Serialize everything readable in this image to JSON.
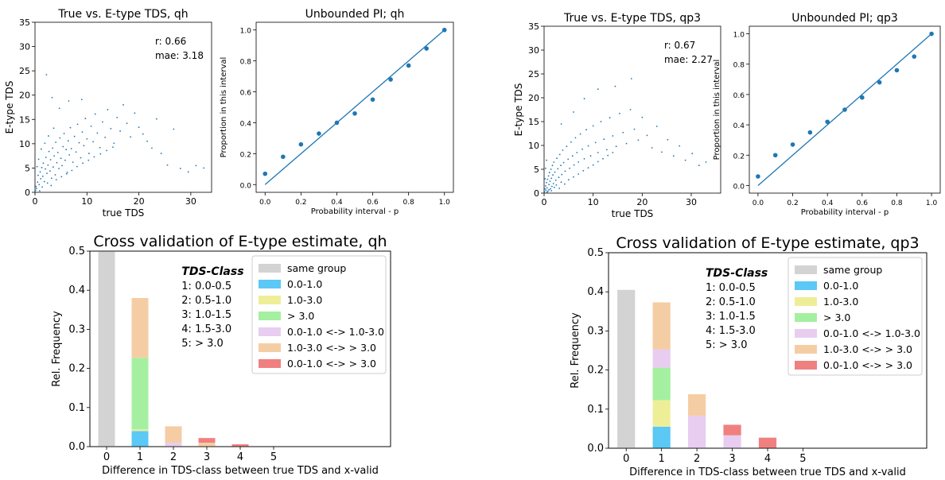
{
  "chart_data": [
    {
      "id": "scatter_qh",
      "type": "scatter",
      "title": "True vs. E-type TDS, qh",
      "xlabel": "true TDS",
      "ylabel": "E-type TDS",
      "xlim": [
        0,
        34
      ],
      "ylim": [
        0,
        35
      ],
      "xticks": [
        0,
        10,
        20,
        30
      ],
      "yticks": [
        0,
        5,
        10,
        15,
        20,
        25,
        30,
        35
      ],
      "annotations": [
        "r: 0.66",
        "mae: 3.18"
      ],
      "color": "#1f77b4",
      "points": [
        [
          0.1,
          0.4
        ],
        [
          0.2,
          1.2
        ],
        [
          0.3,
          0.8
        ],
        [
          0.5,
          2.1
        ],
        [
          0.6,
          3.5
        ],
        [
          0.8,
          1.6
        ],
        [
          1.0,
          4.2
        ],
        [
          1.1,
          2.8
        ],
        [
          1.3,
          5.1
        ],
        [
          1.5,
          3.3
        ],
        [
          1.6,
          6.0
        ],
        [
          1.8,
          2.2
        ],
        [
          2.0,
          4.8
        ],
        [
          2.1,
          7.2
        ],
        [
          2.3,
          3.9
        ],
        [
          2.5,
          5.6
        ],
        [
          2.7,
          8.4
        ],
        [
          2.9,
          4.4
        ],
        [
          3.0,
          6.7
        ],
        [
          3.2,
          2.9
        ],
        [
          3.4,
          9.1
        ],
        [
          3.5,
          5.2
        ],
        [
          3.7,
          7.5
        ],
        [
          3.9,
          3.6
        ],
        [
          4.0,
          10.3
        ],
        [
          4.2,
          6.1
        ],
        [
          4.4,
          8.2
        ],
        [
          4.6,
          4.9
        ],
        [
          4.8,
          11.2
        ],
        [
          5.0,
          7.0
        ],
        [
          5.2,
          5.5
        ],
        [
          5.4,
          9.4
        ],
        [
          5.6,
          12.1
        ],
        [
          5.8,
          6.6
        ],
        [
          6.0,
          8.8
        ],
        [
          6.2,
          4.1
        ],
        [
          6.4,
          10.6
        ],
        [
          6.6,
          7.7
        ],
        [
          6.8,
          13.3
        ],
        [
          7.0,
          9.0
        ],
        [
          7.3,
          6.2
        ],
        [
          7.6,
          11.5
        ],
        [
          7.9,
          8.3
        ],
        [
          8.2,
          14.0
        ],
        [
          8.5,
          10.2
        ],
        [
          8.8,
          7.1
        ],
        [
          9.1,
          12.4
        ],
        [
          9.4,
          9.6
        ],
        [
          9.7,
          15.2
        ],
        [
          10.0,
          11.0
        ],
        [
          10.4,
          8.0
        ],
        [
          10.8,
          13.6
        ],
        [
          11.2,
          10.4
        ],
        [
          11.6,
          16.1
        ],
        [
          12.0,
          12.2
        ],
        [
          12.5,
          9.2
        ],
        [
          13.0,
          14.5
        ],
        [
          13.5,
          11.3
        ],
        [
          14.0,
          17.0
        ],
        [
          14.6,
          13.1
        ],
        [
          15.2,
          10.1
        ],
        [
          15.8,
          15.4
        ],
        [
          16.4,
          12.6
        ],
        [
          17.0,
          18.0
        ],
        [
          17.7,
          14.2
        ],
        [
          18.4,
          11.4
        ],
        [
          19.2,
          16.3
        ],
        [
          20.0,
          13.4
        ],
        [
          20.8,
          12.0
        ],
        [
          21.6,
          10.5
        ],
        [
          22.5,
          9.1
        ],
        [
          23.4,
          15.1
        ],
        [
          24.3,
          8.0
        ],
        [
          25.5,
          5.6
        ],
        [
          26.7,
          13.0
        ],
        [
          28.0,
          4.9
        ],
        [
          29.5,
          4.2
        ],
        [
          31.0,
          5.5
        ],
        [
          32.5,
          5.0
        ],
        [
          2.2,
          24.2
        ],
        [
          3.3,
          19.5
        ],
        [
          4.7,
          17.3
        ],
        [
          6.5,
          18.8
        ],
        [
          9.0,
          19.1
        ],
        [
          0.4,
          5.3
        ],
        [
          0.7,
          6.8
        ],
        [
          1.2,
          8.9
        ],
        [
          1.9,
          10.1
        ],
        [
          2.6,
          11.6
        ],
        [
          3.6,
          13.2
        ],
        [
          0.9,
          0.3
        ],
        [
          1.4,
          1.1
        ],
        [
          2.4,
          1.9
        ],
        [
          3.1,
          1.4
        ],
        [
          4.1,
          2.6
        ],
        [
          5.1,
          3.2
        ],
        [
          6.1,
          3.8
        ],
        [
          7.1,
          4.5
        ],
        [
          8.1,
          5.3
        ],
        [
          9.2,
          6.0
        ],
        [
          10.3,
          6.6
        ],
        [
          11.4,
          7.3
        ],
        [
          12.6,
          7.9
        ],
        [
          13.8,
          8.6
        ],
        [
          15.0,
          9.3
        ]
      ]
    },
    {
      "id": "pi_qh",
      "type": "scatter",
      "title": "Unbounded PI; qh",
      "xlabel": "Probability interval - p",
      "ylabel": "Proportion in this interval",
      "xlim": [
        -0.05,
        1.05
      ],
      "ylim": [
        -0.05,
        1.05
      ],
      "xticks": [
        0.0,
        0.2,
        0.4,
        0.6,
        0.8,
        1.0
      ],
      "yticks": [
        0.0,
        0.2,
        0.4,
        0.6,
        0.8,
        1.0
      ],
      "line": [
        [
          0,
          0
        ],
        [
          1,
          1
        ]
      ],
      "x": [
        0.0,
        0.1,
        0.2,
        0.3,
        0.4,
        0.5,
        0.6,
        0.7,
        0.8,
        0.9,
        1.0
      ],
      "y": [
        0.07,
        0.18,
        0.26,
        0.33,
        0.4,
        0.46,
        0.55,
        0.68,
        0.77,
        0.88,
        1.0
      ]
    },
    {
      "id": "scatter_qp3",
      "type": "scatter",
      "title": "True vs. E-type TDS, qp3",
      "xlabel": "true TDS",
      "ylabel": "E-type TDS",
      "xlim": [
        0,
        36
      ],
      "ylim": [
        0,
        35
      ],
      "xticks": [
        0,
        10,
        20,
        30
      ],
      "yticks": [
        0,
        5,
        10,
        15,
        20,
        25,
        30,
        35
      ],
      "annotations": [
        "r: 0.67",
        "mae: 2.27"
      ],
      "color": "#1f77b4",
      "points": [
        [
          0.1,
          0.3
        ],
        [
          0.2,
          0.9
        ],
        [
          0.3,
          1.5
        ],
        [
          0.4,
          0.6
        ],
        [
          0.5,
          2.2
        ],
        [
          0.6,
          1.1
        ],
        [
          0.7,
          2.9
        ],
        [
          0.8,
          0.4
        ],
        [
          0.9,
          3.6
        ],
        [
          1.0,
          1.8
        ],
        [
          1.1,
          4.3
        ],
        [
          1.2,
          2.5
        ],
        [
          1.3,
          0.9
        ],
        [
          1.4,
          5.0
        ],
        [
          1.5,
          3.1
        ],
        [
          1.6,
          1.4
        ],
        [
          1.7,
          5.8
        ],
        [
          1.8,
          3.8
        ],
        [
          1.9,
          2.0
        ],
        [
          2.0,
          6.5
        ],
        [
          2.2,
          4.4
        ],
        [
          2.4,
          2.7
        ],
        [
          2.6,
          7.3
        ],
        [
          2.8,
          5.1
        ],
        [
          3.0,
          3.3
        ],
        [
          3.2,
          8.1
        ],
        [
          3.4,
          5.8
        ],
        [
          3.6,
          3.9
        ],
        [
          3.8,
          9.0
        ],
        [
          4.0,
          6.4
        ],
        [
          4.3,
          4.6
        ],
        [
          4.6,
          9.8
        ],
        [
          4.9,
          7.1
        ],
        [
          5.2,
          5.2
        ],
        [
          5.5,
          10.7
        ],
        [
          5.8,
          7.8
        ],
        [
          6.1,
          5.9
        ],
        [
          6.4,
          11.6
        ],
        [
          6.7,
          8.5
        ],
        [
          7.0,
          6.5
        ],
        [
          7.4,
          12.4
        ],
        [
          7.8,
          9.2
        ],
        [
          8.2,
          7.2
        ],
        [
          8.6,
          13.3
        ],
        [
          9.0,
          9.9
        ],
        [
          9.5,
          7.8
        ],
        [
          10.0,
          14.1
        ],
        [
          10.5,
          10.6
        ],
        [
          11.0,
          8.5
        ],
        [
          11.6,
          15.0
        ],
        [
          12.2,
          11.3
        ],
        [
          12.8,
          9.1
        ],
        [
          13.4,
          15.8
        ],
        [
          14.0,
          12.0
        ],
        [
          14.7,
          9.8
        ],
        [
          15.4,
          16.7
        ],
        [
          16.1,
          12.7
        ],
        [
          16.8,
          10.4
        ],
        [
          17.6,
          17.5
        ],
        [
          18.4,
          13.4
        ],
        [
          19.2,
          11.1
        ],
        [
          20.0,
          15.9
        ],
        [
          21.0,
          12.1
        ],
        [
          22.0,
          9.5
        ],
        [
          23.0,
          14.0
        ],
        [
          24.0,
          8.6
        ],
        [
          25.2,
          11.2
        ],
        [
          26.4,
          7.8
        ],
        [
          27.6,
          9.9
        ],
        [
          28.8,
          6.9
        ],
        [
          30.2,
          8.3
        ],
        [
          31.6,
          5.8
        ],
        [
          33.0,
          6.5
        ],
        [
          17.8,
          24.0
        ],
        [
          11.0,
          21.8
        ],
        [
          14.5,
          22.4
        ],
        [
          6.0,
          17.0
        ],
        [
          3.5,
          14.5
        ],
        [
          8.2,
          19.8
        ],
        [
          0.2,
          3.0
        ],
        [
          0.3,
          5.2
        ],
        [
          0.5,
          6.9
        ],
        [
          0.6,
          0.2
        ],
        [
          1.0,
          0.7
        ],
        [
          1.5,
          0.5
        ],
        [
          2.1,
          1.2
        ],
        [
          2.5,
          1.7
        ],
        [
          3.1,
          1.0
        ],
        [
          3.5,
          2.3
        ],
        [
          4.2,
          1.9
        ],
        [
          5.0,
          2.8
        ],
        [
          6.0,
          3.4
        ],
        [
          7.0,
          4.0
        ],
        [
          8.0,
          4.7
        ],
        [
          9.0,
          5.3
        ],
        [
          10.0,
          5.9
        ],
        [
          11.0,
          6.6
        ],
        [
          12.0,
          7.2
        ],
        [
          13.0,
          7.9
        ],
        [
          14.0,
          8.5
        ]
      ]
    },
    {
      "id": "pi_qp3",
      "type": "scatter",
      "title": "Unbounded PI; qp3",
      "xlabel": "Probability interval - p",
      "ylabel": "Proportion in this interval",
      "xlim": [
        -0.05,
        1.05
      ],
      "ylim": [
        -0.05,
        1.05
      ],
      "xticks": [
        0.0,
        0.2,
        0.4,
        0.6,
        0.8,
        1.0
      ],
      "yticks": [
        0.0,
        0.2,
        0.4,
        0.6,
        0.8,
        1.0
      ],
      "line": [
        [
          0,
          0
        ],
        [
          1,
          1
        ]
      ],
      "x": [
        0.0,
        0.1,
        0.2,
        0.3,
        0.4,
        0.5,
        0.6,
        0.7,
        0.8,
        0.9,
        1.0
      ],
      "y": [
        0.06,
        0.2,
        0.27,
        0.35,
        0.42,
        0.5,
        0.58,
        0.68,
        0.76,
        0.85,
        1.0
      ]
    },
    {
      "id": "cv_qh",
      "type": "bar",
      "stacked": true,
      "title": "Cross validation of E-type estimate, qh",
      "xlabel": "Difference in TDS-class between true TDS and x-valid",
      "ylabel": "Rel. Frequency",
      "ylim": [
        0,
        0.5
      ],
      "xlim": [
        -0.5,
        8.5
      ],
      "yticks": [
        0.0,
        0.1,
        0.2,
        0.3,
        0.4,
        0.5
      ],
      "categories": [
        "0",
        "1",
        "2",
        "3",
        "4",
        "5"
      ],
      "class_box": {
        "title": "TDS-Class",
        "lines": [
          "1: 0.0-0.5",
          "2: 0.5-1.0",
          "3: 1.0-1.5",
          "4: 1.5-3.0",
          "5: > 3.0"
        ]
      },
      "legend_position": "upper right",
      "series": [
        {
          "name": "same group",
          "color": "#d3d3d3",
          "values": [
            0.5,
            0,
            0,
            0,
            0,
            0
          ]
        },
        {
          "name": "0.0-1.0",
          "color": "#5bc8f5",
          "values": [
            0,
            0.04,
            0,
            0,
            0,
            0
          ]
        },
        {
          "name": "1.0-3.0",
          "color": "#eeee99",
          "values": [
            0,
            0.004,
            0,
            0,
            0,
            0
          ]
        },
        {
          "name": "> 3.0",
          "color": "#a4f0a0",
          "values": [
            0,
            0.183,
            0,
            0,
            0,
            0
          ]
        },
        {
          "name": "0.0-1.0 <-> 1.0-3.0",
          "color": "#e8cdf0",
          "values": [
            0,
            0,
            0.01,
            0,
            0,
            0
          ]
        },
        {
          "name": "1.0-3.0 <-> > 3.0",
          "color": "#f5cda4",
          "values": [
            0,
            0.153,
            0.042,
            0.01,
            0,
            0
          ]
        },
        {
          "name": "0.0-1.0 <-> > 3.0",
          "color": "#f08080",
          "values": [
            0,
            0,
            0,
            0.012,
            0.006,
            0
          ]
        }
      ]
    },
    {
      "id": "cv_qp3",
      "type": "bar",
      "stacked": true,
      "title": "Cross validation of E-type estimate, qp3",
      "xlabel": "Difference in TDS-class between true TDS and x-valid",
      "ylabel": "Rel. Frequency",
      "ylim": [
        0,
        0.5
      ],
      "xlim": [
        -0.5,
        8.5
      ],
      "yticks": [
        0.0,
        0.1,
        0.2,
        0.3,
        0.4,
        0.5
      ],
      "categories": [
        "0",
        "1",
        "2",
        "3",
        "4",
        "5"
      ],
      "class_box": {
        "title": "TDS-Class",
        "lines": [
          "1: 0.0-0.5",
          "2: 0.5-1.0",
          "3: 1.0-1.5",
          "4: 1.5-3.0",
          "5: > 3.0"
        ]
      },
      "legend_position": "upper right",
      "series": [
        {
          "name": "same group",
          "color": "#d3d3d3",
          "values": [
            0.405,
            0,
            0,
            0,
            0,
            0
          ]
        },
        {
          "name": "0.0-1.0",
          "color": "#5bc8f5",
          "values": [
            0,
            0.055,
            0,
            0,
            0,
            0
          ]
        },
        {
          "name": "1.0-3.0",
          "color": "#eeee99",
          "values": [
            0,
            0.068,
            0,
            0,
            0,
            0
          ]
        },
        {
          "name": "> 3.0",
          "color": "#a4f0a0",
          "values": [
            0,
            0.083,
            0,
            0,
            0,
            0
          ]
        },
        {
          "name": "0.0-1.0 <-> 1.0-3.0",
          "color": "#e8cdf0",
          "values": [
            0,
            0.047,
            0.083,
            0.033,
            0,
            0
          ]
        },
        {
          "name": "1.0-3.0 <-> > 3.0",
          "color": "#f5cda4",
          "values": [
            0,
            0.12,
            0.055,
            0,
            0,
            0
          ]
        },
        {
          "name": "0.0-1.0 <-> > 3.0",
          "color": "#f08080",
          "values": [
            0,
            0,
            0,
            0.027,
            0.027,
            0
          ]
        }
      ]
    }
  ]
}
